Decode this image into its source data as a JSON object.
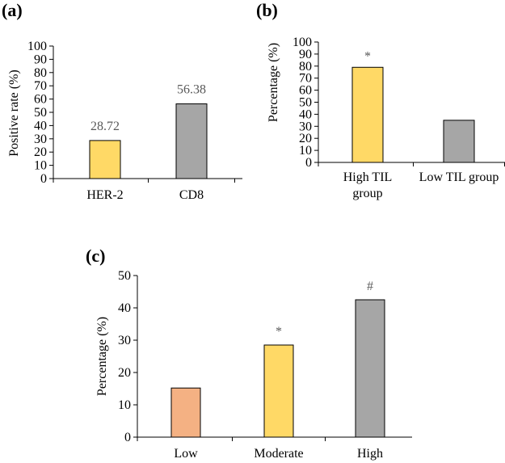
{
  "figure": {
    "chart_data": [
      {
        "panel": "(a)",
        "type": "bar",
        "title": "",
        "xlabel": "",
        "ylabel": "Positive rate (%)",
        "categories": [
          "HER-2",
          "CD8"
        ],
        "values": [
          28.72,
          56.38
        ],
        "data_labels": [
          "28.72",
          "56.38"
        ],
        "colors": [
          "#FFD966",
          "#A6A6A6"
        ],
        "ylim": [
          0,
          100
        ],
        "yticks": [
          0,
          10,
          20,
          30,
          40,
          50,
          60,
          70,
          80,
          90,
          100
        ],
        "grid": false
      },
      {
        "panel": "(b)",
        "type": "bar",
        "title": "",
        "xlabel": "",
        "ylabel": "Percentage (%)",
        "categories": [
          [
            "High TIL",
            "group"
          ],
          [
            "Low TIL group"
          ]
        ],
        "values": [
          79,
          35
        ],
        "annotations": [
          "*",
          ""
        ],
        "colors": [
          "#FFD966",
          "#A6A6A6"
        ],
        "ylim": [
          0,
          100
        ],
        "yticks": [
          0,
          10,
          20,
          30,
          40,
          50,
          60,
          70,
          80,
          90,
          100
        ],
        "grid": false
      },
      {
        "panel": "(c)",
        "type": "bar",
        "title": "",
        "xlabel": "",
        "ylabel": "Percentage (%)",
        "categories": [
          [
            "Low"
          ],
          [
            "Moderate"
          ],
          [
            "High"
          ]
        ],
        "values": [
          15.2,
          28.5,
          42.5
        ],
        "annotations": [
          "",
          "*",
          "#"
        ],
        "colors": [
          "#F4B183",
          "#FFD966",
          "#A6A6A6"
        ],
        "ylim": [
          0,
          50
        ],
        "yticks": [
          0,
          10,
          20,
          30,
          40,
          50
        ],
        "grid": false
      }
    ]
  }
}
